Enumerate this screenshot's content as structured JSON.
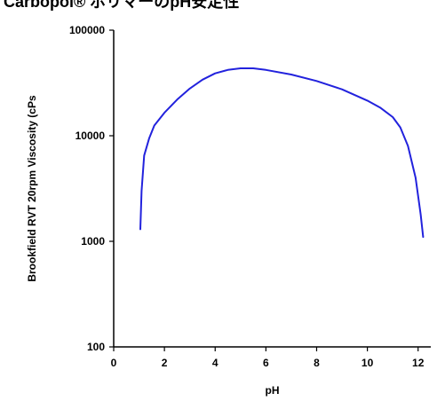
{
  "chart_data": {
    "type": "line",
    "title": "Carbopol® ポリマーのpH安定性",
    "xlabel": "pH",
    "ylabel": "Brookfield RVT 20rpm Viscosity (cPs",
    "xlim": [
      0,
      12.5
    ],
    "ylim": [
      100,
      100000
    ],
    "yscale": "log",
    "x_ticks": [
      0,
      2,
      4,
      6,
      8,
      10,
      12
    ],
    "x_tick_labels": [
      "0",
      "2",
      "4",
      "6",
      "8",
      "10",
      "12"
    ],
    "y_ticks": [
      100,
      1000,
      10000,
      100000
    ],
    "y_tick_labels": [
      "100",
      "1000",
      "10000",
      "100000"
    ],
    "grid": false,
    "legend": "none",
    "series": [
      {
        "color": "#2222dd",
        "x": [
          1.05,
          1.1,
          1.2,
          1.4,
          1.6,
          2.0,
          2.5,
          3.0,
          3.5,
          4.0,
          4.5,
          5.0,
          5.5,
          6.0,
          7.0,
          8.0,
          9.0,
          10.0,
          10.5,
          11.0,
          11.3,
          11.6,
          11.9,
          12.1,
          12.2
        ],
        "y": [
          1300,
          3000,
          6500,
          9500,
          12500,
          16500,
          22000,
          28000,
          34000,
          39000,
          42000,
          43500,
          43500,
          42000,
          38000,
          33000,
          27500,
          21500,
          18500,
          15000,
          12000,
          8000,
          4000,
          1800,
          1100
        ]
      }
    ]
  }
}
